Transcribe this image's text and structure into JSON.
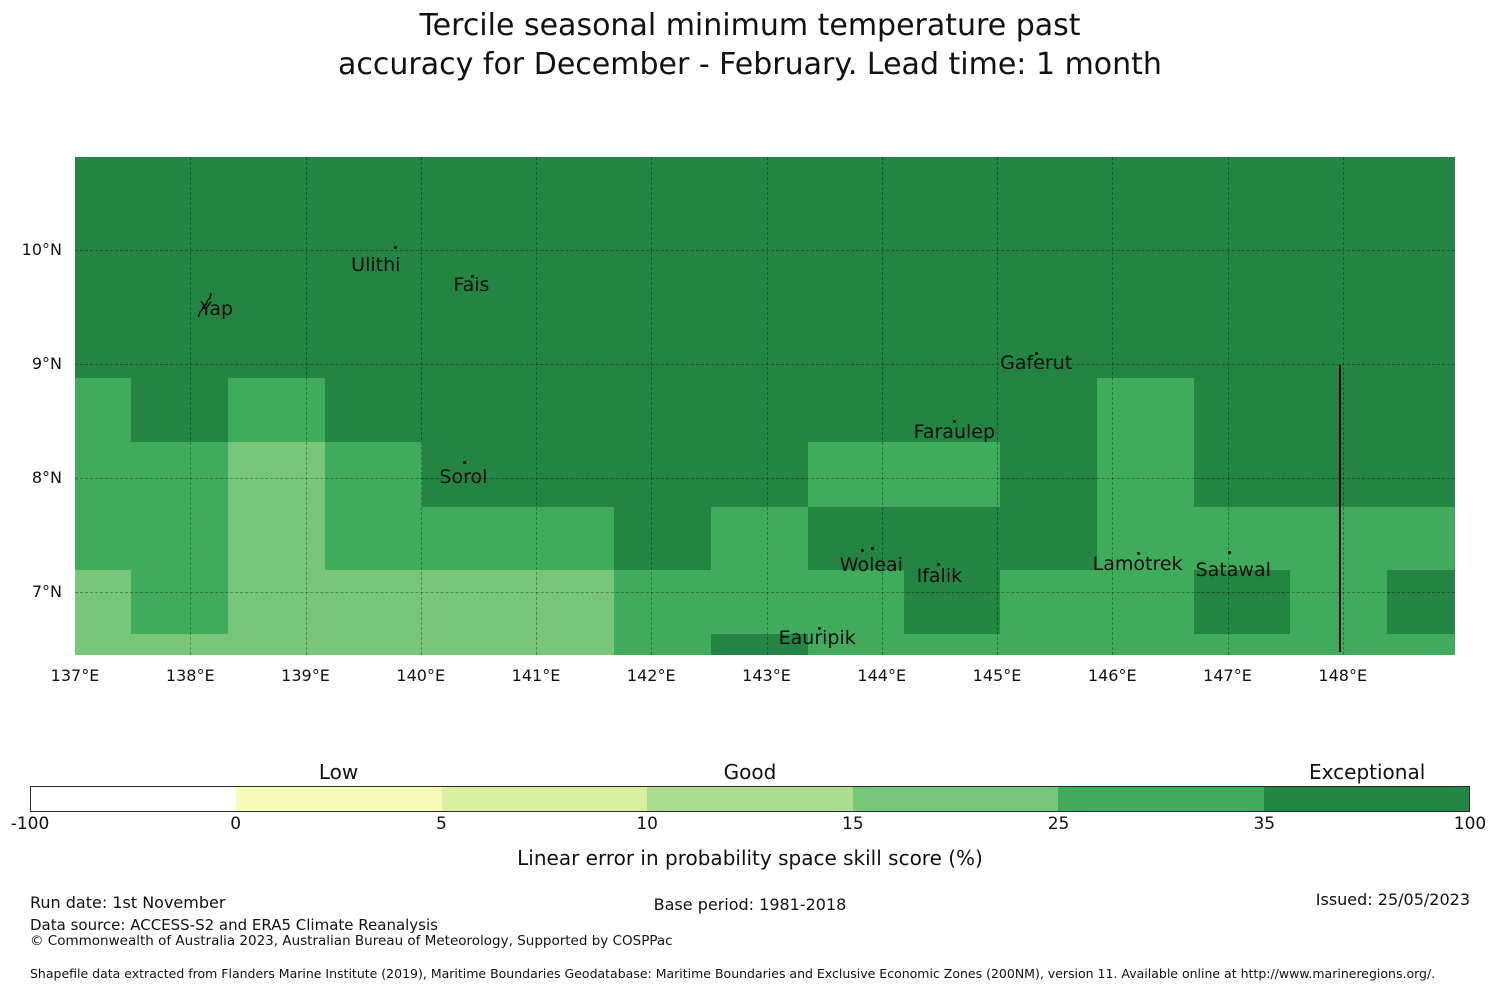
{
  "title": {
    "line1": "Tercile seasonal minimum temperature past",
    "line2": "accuracy for December - February. Lead time: 1 month"
  },
  "chart_data": {
    "type": "heatmap",
    "title": "Tercile seasonal minimum temperature past accuracy for December - February. Lead time: 1 month",
    "x_axis": {
      "units": "degrees east",
      "range": [
        137.0,
        149.0
      ]
    },
    "y_axis": {
      "units": "degrees north",
      "range": [
        6.44,
        10.82
      ]
    },
    "x_tick_labels": [
      {
        "lon": 137,
        "label": "137°E"
      },
      {
        "lon": 138,
        "label": "138°E"
      },
      {
        "lon": 139,
        "label": "139°E"
      },
      {
        "lon": 140,
        "label": "140°E"
      },
      {
        "lon": 141,
        "label": "141°E"
      },
      {
        "lon": 142,
        "label": "142°E"
      },
      {
        "lon": 143,
        "label": "143°E"
      },
      {
        "lon": 144,
        "label": "144°E"
      },
      {
        "lon": 145,
        "label": "145°E"
      },
      {
        "lon": 146,
        "label": "146°E"
      },
      {
        "lon": 147,
        "label": "147°E"
      },
      {
        "lon": 148,
        "label": "148°E"
      }
    ],
    "y_tick_labels": [
      {
        "lat": 10,
        "label": "10°N"
      },
      {
        "lat": 9,
        "label": "9°N"
      },
      {
        "lat": 8,
        "label": "8°N"
      },
      {
        "lat": 7,
        "label": "7°N"
      }
    ],
    "grid_on": true,
    "lon_edges": [
      136.99,
      137.49,
      138.33,
      139.17,
      140.01,
      140.84,
      141.68,
      142.52,
      143.36,
      144.19,
      145.03,
      145.87,
      146.71,
      147.54,
      148.38,
      149.0
    ],
    "lat_edges": [
      10.82,
      10.56,
      10.0,
      9.44,
      8.88,
      8.32,
      7.75,
      7.19,
      6.63,
      6.44
    ],
    "matrix_rows_top_to_bottom": [
      "DDDDDDDDDDDDDDD",
      "DDDDDDDDDDDDDDD",
      "DDDDDDDDDDDDDDD",
      "DDDDDDDDDDDDDDD",
      "MDMDDDDDDDDMDDD",
      "MMLMDDDDMMDMDDD",
      "MMLMMMDMDDDMMMM",
      "LMLLLLMMMDMMDMD",
      "LLLLLLMDMMMMMMM"
    ],
    "bins": {
      "D": "35-100",
      "M": "25-35",
      "L": "15-25"
    },
    "bin_colors": {
      "D": "#238443",
      "M": "#41ab5d",
      "L": "#78c679"
    },
    "islands": [
      {
        "name": "Yap",
        "label_lon": 138.23,
        "label_lat": 9.48,
        "dots": [],
        "has_outline_shape": true
      },
      {
        "name": "Ulithi",
        "label_lon": 139.61,
        "label_lat": 9.87,
        "dots": [
          [
            139.78,
            10.02
          ]
        ]
      },
      {
        "name": "Fais",
        "label_lon": 140.44,
        "label_lat": 9.69,
        "dots": [
          [
            140.45,
            9.77
          ]
        ]
      },
      {
        "name": "Sorol",
        "label_lon": 140.37,
        "label_lat": 8.01,
        "dots": [
          [
            140.38,
            8.14
          ]
        ]
      },
      {
        "name": "Gaferut",
        "label_lon": 145.34,
        "label_lat": 9.01,
        "dots": [
          [
            145.34,
            9.09
          ]
        ]
      },
      {
        "name": "Faraulep",
        "label_lon": 144.63,
        "label_lat": 8.4,
        "dots": [
          [
            144.63,
            8.5
          ]
        ]
      },
      {
        "name": "Woleai",
        "label_lon": 143.91,
        "label_lat": 7.24,
        "dots": [
          [
            143.83,
            7.36
          ],
          [
            143.92,
            7.38
          ]
        ]
      },
      {
        "name": "Ifalik",
        "label_lon": 144.5,
        "label_lat": 7.14,
        "dots": [
          [
            144.49,
            7.24
          ]
        ]
      },
      {
        "name": "Eauripik",
        "label_lon": 143.44,
        "label_lat": 6.6,
        "dots": [
          [
            143.46,
            6.68
          ]
        ]
      },
      {
        "name": "Lamotrek",
        "label_lon": 146.22,
        "label_lat": 7.25,
        "dots": [
          [
            146.23,
            7.34
          ]
        ]
      },
      {
        "name": "Satawal",
        "label_lon": 147.05,
        "label_lat": 7.19,
        "dots": [
          [
            147.02,
            7.35
          ]
        ]
      }
    ],
    "maritime_boundary": {
      "lon": 147.97,
      "lat_top": 8.99,
      "lat_bottom": 6.47
    }
  },
  "colorbar": {
    "boundary_labels": [
      "-100",
      "0",
      "5",
      "10",
      "15",
      "25",
      "35",
      "100"
    ],
    "segment_colors": [
      "#ffffff",
      "#f7fcb9",
      "#d9f0a3",
      "#addd8e",
      "#78c679",
      "#41ab5d",
      "#238443"
    ],
    "category_labels": [
      {
        "text": "Low",
        "segment_index": 1
      },
      {
        "text": "Good",
        "segment_index": 3
      },
      {
        "text": "Exceptional",
        "segment_index": 6
      }
    ],
    "axis_label": "Linear error in probability space skill score (%)"
  },
  "footer": {
    "run_date": "Run date: 1st November",
    "base_period": "Base period: 1981-2018",
    "issued": "Issued: 25/05/2023",
    "data_source": "Data source: ACCESS-S2 and ERA5 Climate Reanalysis",
    "copyright": "© Commonwealth of Australia 2023, Australian Bureau of Meteorology, Supported by COSPPac",
    "shapefile_note": "Shapefile data extracted from Flanders Marine Institute (2019), Maritime Boundaries Geodatabase: Maritime Boundaries and Exclusive Economic Zones (200NM), version 11. Available online at http://www.marineregions.org/."
  }
}
